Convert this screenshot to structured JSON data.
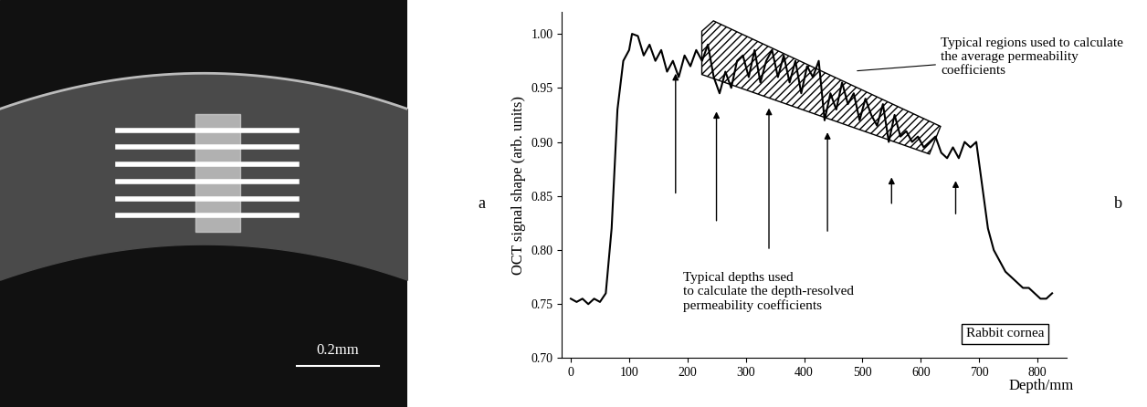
{
  "image_panel": {
    "label": "a",
    "scale_bar": "0.2mm"
  },
  "chart_data": {
    "type": "line",
    "panel_label": "b",
    "x_label": "Depth/mm",
    "y_label": "OCT signal shape (arb. units)",
    "x": [
      0,
      10,
      20,
      30,
      40,
      50,
      60,
      70,
      80,
      90,
      100,
      105,
      115,
      125,
      135,
      145,
      155,
      165,
      175,
      185,
      195,
      205,
      215,
      225,
      235,
      245,
      255,
      265,
      275,
      285,
      295,
      305,
      315,
      325,
      335,
      345,
      355,
      365,
      375,
      385,
      395,
      405,
      415,
      425,
      435,
      445,
      455,
      465,
      475,
      485,
      495,
      505,
      515,
      525,
      535,
      545,
      555,
      565,
      575,
      585,
      595,
      605,
      615,
      625,
      635,
      645,
      655,
      665,
      675,
      685,
      695,
      705,
      715,
      725,
      735,
      745,
      755,
      765,
      775,
      785,
      795,
      805,
      815,
      825
    ],
    "values": [
      0.755,
      0.752,
      0.755,
      0.75,
      0.755,
      0.752,
      0.76,
      0.82,
      0.93,
      0.975,
      0.985,
      1.0,
      0.998,
      0.98,
      0.99,
      0.975,
      0.985,
      0.965,
      0.975,
      0.96,
      0.98,
      0.97,
      0.985,
      0.975,
      0.99,
      0.96,
      0.945,
      0.965,
      0.95,
      0.975,
      0.98,
      0.96,
      0.985,
      0.955,
      0.975,
      0.985,
      0.96,
      0.98,
      0.955,
      0.975,
      0.945,
      0.97,
      0.96,
      0.975,
      0.92,
      0.945,
      0.93,
      0.955,
      0.935,
      0.945,
      0.92,
      0.94,
      0.925,
      0.915,
      0.935,
      0.9,
      0.925,
      0.905,
      0.91,
      0.9,
      0.905,
      0.895,
      0.9,
      0.905,
      0.89,
      0.885,
      0.895,
      0.885,
      0.9,
      0.895,
      0.9,
      0.86,
      0.82,
      0.8,
      0.79,
      0.78,
      0.775,
      0.77,
      0.765,
      0.765,
      0.76,
      0.755,
      0.755,
      0.76
    ],
    "color": "#000000",
    "xlim": [
      -15,
      850
    ],
    "xticks": [
      0,
      100,
      200,
      300,
      400,
      500,
      600,
      700,
      800
    ],
    "ylim": [
      0.7,
      1.02
    ],
    "yticks": [
      {
        "value": 0.7,
        "label": "0.70"
      },
      {
        "value": 0.75,
        "label": "0.75"
      },
      {
        "value": 0.8,
        "label": "0.80"
      },
      {
        "value": 0.85,
        "label": "0.85"
      },
      {
        "value": 0.9,
        "label": "0.90"
      },
      {
        "value": 0.95,
        "label": "0.95"
      },
      {
        "value": 1.0,
        "label": "1.00"
      }
    ],
    "grid": false,
    "region_note": "Typical regions used to calculate\nthe average permeability\ncoefficients",
    "depth_note": "Typical depths used\nto calculate the depth-resolved\npermeability coefficients",
    "box_note": "Rabbit cornea"
  }
}
